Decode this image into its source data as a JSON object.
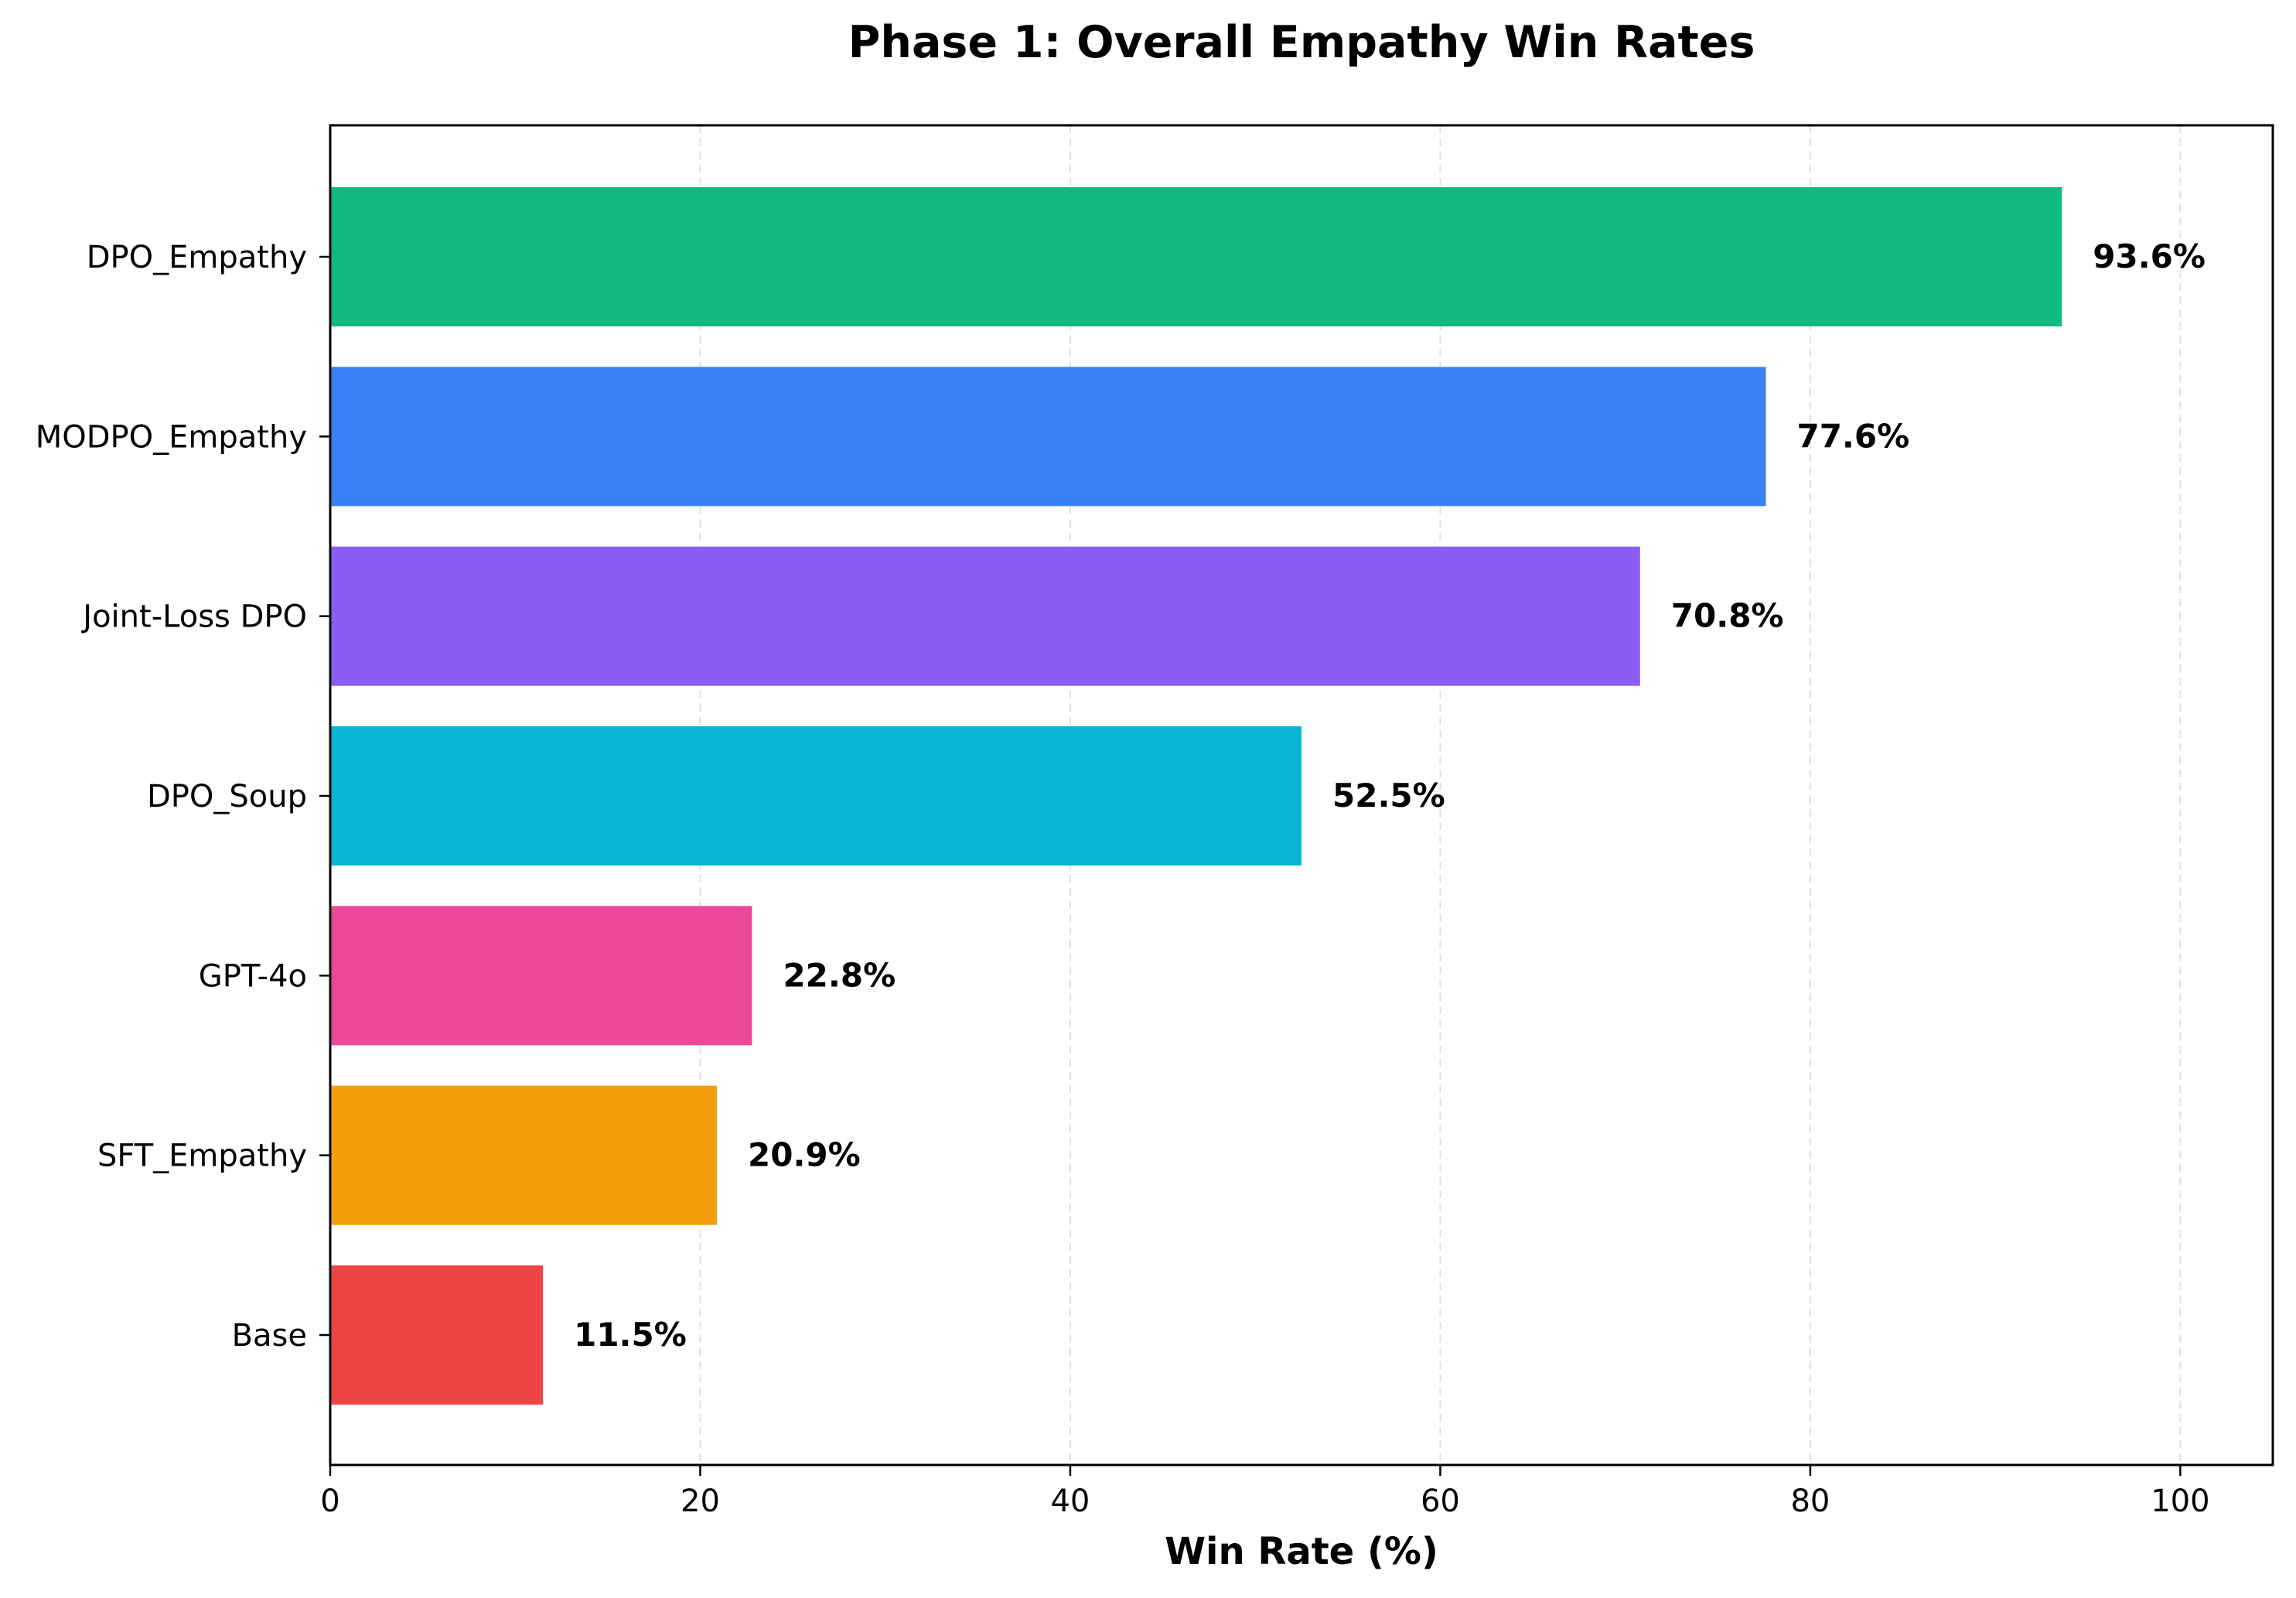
{
  "chart_data": {
    "type": "bar",
    "orientation": "horizontal",
    "title": "Phase 1: Overall Empathy Win Rates",
    "xlabel": "Win Rate (%)",
    "ylabel": "",
    "xlim": [
      0,
      105
    ],
    "xticks": [
      0,
      20,
      40,
      60,
      80,
      100
    ],
    "xtick_labels": [
      "0",
      "20",
      "40",
      "60",
      "80",
      "100"
    ],
    "grid": "x-dashed",
    "categories": [
      "DPO_Empathy",
      "MODPO_Empathy",
      "Joint-Loss DPO",
      "DPO_Soup",
      "GPT-4o",
      "SFT_Empathy",
      "Base"
    ],
    "values": [
      93.6,
      77.6,
      70.8,
      52.5,
      22.8,
      20.9,
      11.5
    ],
    "value_labels": [
      "93.6%",
      "77.6%",
      "70.8%",
      "52.5%",
      "22.8%",
      "20.9%",
      "11.5%"
    ],
    "colors": [
      "#10b981",
      "#3b82f6",
      "#8b5cf6",
      "#06b6d4",
      "#ec4899",
      "#f59e0b",
      "#ef4444"
    ]
  }
}
